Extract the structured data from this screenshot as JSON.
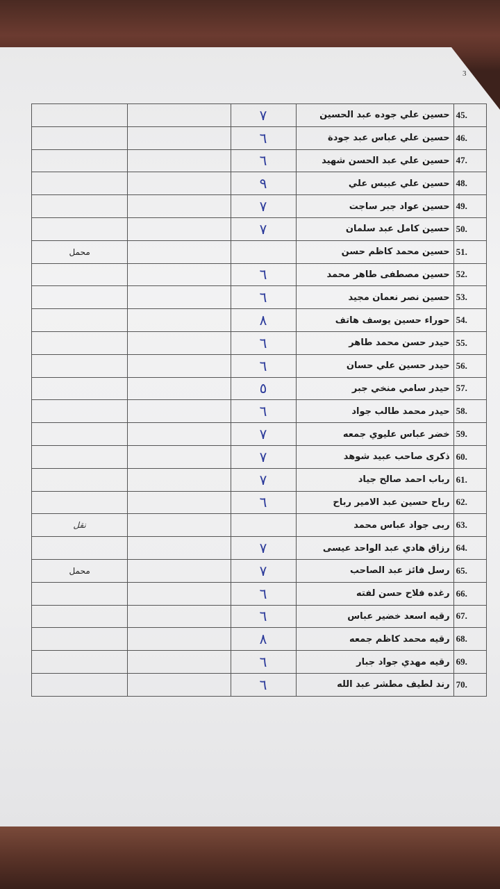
{
  "page_number": "3",
  "rows": [
    {
      "num": "45.",
      "name": "حسين علي جوده عبد الحسين",
      "mark": "٧",
      "note": ""
    },
    {
      "num": "46.",
      "name": "حسين علي عباس عبد جودة",
      "mark": "٦",
      "note": ""
    },
    {
      "num": "47.",
      "name": "حسين علي عبد الحسن شهيد",
      "mark": "٦",
      "note": ""
    },
    {
      "num": "48.",
      "name": "حسين علي عبيس علي",
      "mark": "٩",
      "note": ""
    },
    {
      "num": "49.",
      "name": "حسين عواد جبر ساجت",
      "mark": "٧",
      "note": ""
    },
    {
      "num": "50.",
      "name": "حسين كامل عبد سلمان",
      "mark": "٧",
      "note": ""
    },
    {
      "num": "51.",
      "name": "حسين محمد كاظم حسن",
      "mark": "",
      "note": "محمل"
    },
    {
      "num": "52.",
      "name": "حسين مصطفى طاهر محمد",
      "mark": "٦",
      "note": ""
    },
    {
      "num": "53.",
      "name": "حسين نصر نعمان مجيد",
      "mark": "٦",
      "note": ""
    },
    {
      "num": "54.",
      "name": "حوراء حسين يوسف هاتف",
      "mark": "٨",
      "note": ""
    },
    {
      "num": "55.",
      "name": "حيدر حسن محمد طاهر",
      "mark": "٦",
      "note": ""
    },
    {
      "num": "56.",
      "name": "حيدر حسين علي حسان",
      "mark": "٦",
      "note": ""
    },
    {
      "num": "57.",
      "name": "حيدر سامي منخي جبر",
      "mark": "٥",
      "note": ""
    },
    {
      "num": "58.",
      "name": "حيدر محمد طالب جواد",
      "mark": "٦",
      "note": ""
    },
    {
      "num": "59.",
      "name": "خضر عباس عليوي جمعه",
      "mark": "٧",
      "note": ""
    },
    {
      "num": "60.",
      "name": "ذكرى صاحب عبيد شوهد",
      "mark": "٧",
      "note": ""
    },
    {
      "num": "61.",
      "name": "رباب احمد صالح جياد",
      "mark": "٧",
      "note": ""
    },
    {
      "num": "62.",
      "name": "رباح حسين عبد الامير رباح",
      "mark": "٦",
      "note": ""
    },
    {
      "num": "63.",
      "name": "ربى جواد عباس محمد",
      "mark": "",
      "note": "نقل"
    },
    {
      "num": "64.",
      "name": "رزاق هادي عبد الواحد عيسى",
      "mark": "٧",
      "note": ""
    },
    {
      "num": "65.",
      "name": "رسل فائز عبد الصاحب",
      "mark": "٧",
      "note": "محمل"
    },
    {
      "num": "66.",
      "name": "رغده فلاح حسن لفته",
      "mark": "٦",
      "note": ""
    },
    {
      "num": "67.",
      "name": "رقيه اسعد خضير عباس",
      "mark": "٦",
      "note": ""
    },
    {
      "num": "68.",
      "name": "رقيه محمد كاظم جمعه",
      "mark": "٨",
      "note": ""
    },
    {
      "num": "69.",
      "name": "رقيه مهدي جواد جبار",
      "mark": "٦",
      "note": ""
    },
    {
      "num": "70.",
      "name": "رند لطيف مطشر عبد الله",
      "mark": "٦",
      "note": ""
    }
  ]
}
